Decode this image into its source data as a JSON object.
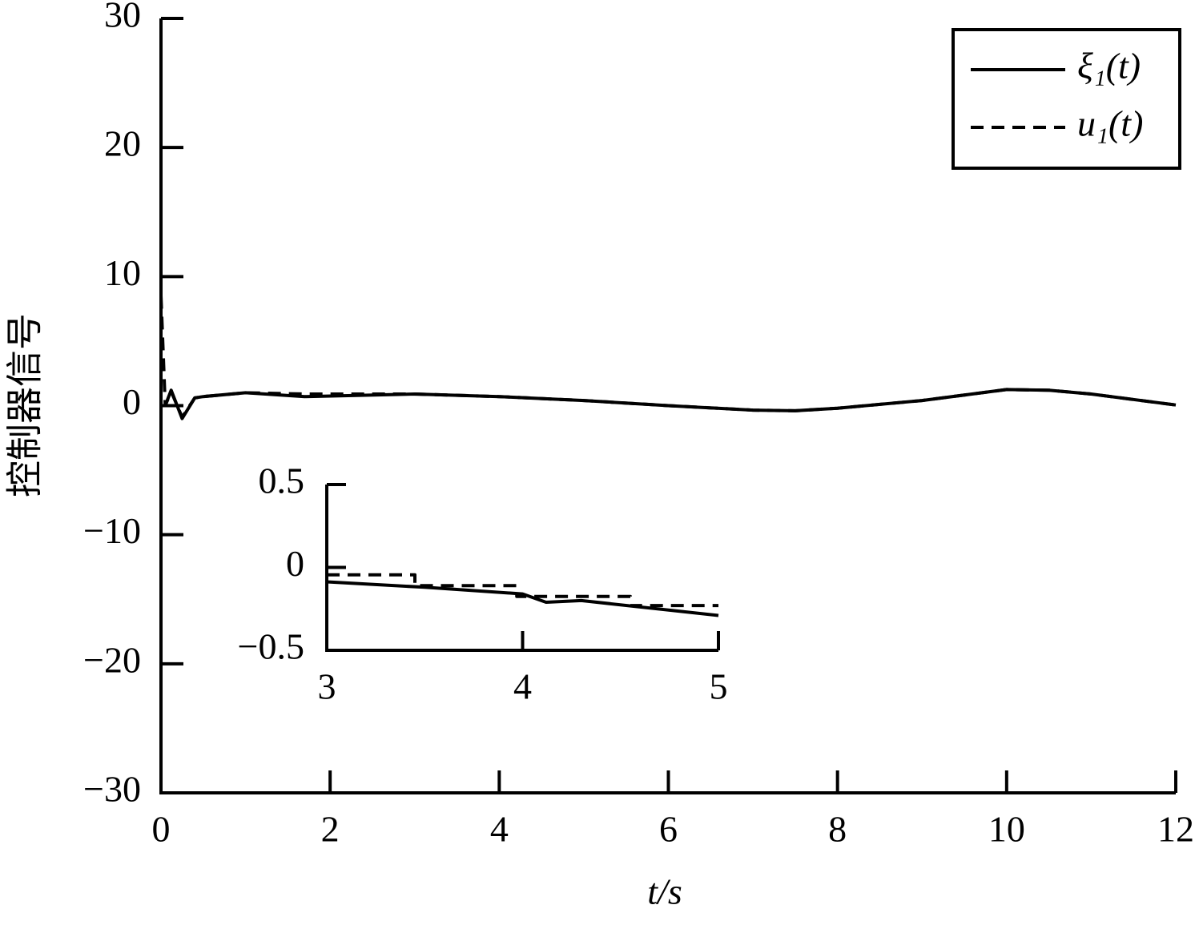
{
  "chart_data": [
    {
      "type": "line",
      "xlabel": "t/s",
      "ylabel": "控制器信号",
      "x": [
        0,
        0.05,
        0.12,
        0.25,
        0.4,
        0.5,
        1,
        1.7,
        3,
        4,
        5,
        6,
        7,
        7.5,
        8,
        9,
        10,
        10.5,
        11,
        12
      ],
      "series": [
        {
          "name": "ξ₁(t)",
          "color": "#000000",
          "linestyle": "solid",
          "values": [
            0,
            0,
            1.2,
            -1.0,
            0.6,
            0.7,
            1.0,
            0.7,
            0.9,
            0.7,
            0.4,
            0.0,
            -0.35,
            -0.4,
            -0.2,
            0.4,
            1.25,
            1.2,
            0.9,
            0.05
          ]
        },
        {
          "name": "u₁(t)",
          "color": "#000000",
          "linestyle": "dashed",
          "values": [
            8.5,
            0,
            1.1,
            -0.9,
            0.6,
            0.7,
            1.0,
            0.9,
            0.9,
            0.7,
            0.4,
            0.0,
            -0.35,
            -0.4,
            -0.2,
            0.4,
            1.25,
            1.2,
            0.9,
            0.05
          ]
        }
      ],
      "xlim": [
        0,
        12
      ],
      "xticks": [
        0,
        2,
        4,
        6,
        8,
        10,
        12
      ],
      "ylim": [
        -30,
        30
      ],
      "yticks": [
        {
          "value": -30,
          "label": "−30"
        },
        {
          "value": -20,
          "label": "−20"
        },
        {
          "value": -10,
          "label": "−10"
        },
        0,
        10,
        20,
        30
      ],
      "legend": "upper right"
    },
    {
      "type": "line",
      "series": [
        {
          "color": "#000000",
          "linestyle": "solid",
          "x": [
            3,
            3.5,
            4,
            4.12,
            4.3,
            5
          ],
          "values": [
            -0.087,
            -0.12,
            -0.16,
            -0.21,
            -0.2,
            -0.29
          ]
        },
        {
          "color": "#000000",
          "linestyle": "dashed",
          "x": [
            3,
            3.45,
            3.45,
            3.97,
            3.97,
            4.55,
            4.55,
            5
          ],
          "values": [
            -0.045,
            -0.045,
            -0.11,
            -0.11,
            -0.175,
            -0.175,
            -0.23,
            -0.23
          ]
        }
      ],
      "xlim": [
        3,
        5
      ],
      "xticks": [
        3,
        4,
        5
      ],
      "ylim": [
        -0.5,
        0.5
      ],
      "yticks": [
        {
          "value": -0.5,
          "label": "−0.5"
        },
        0,
        0.5
      ]
    }
  ]
}
